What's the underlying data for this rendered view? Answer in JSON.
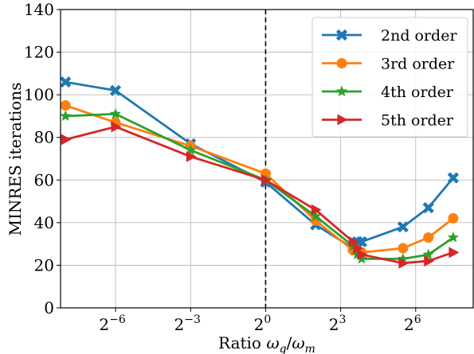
{
  "chart_data": {
    "type": "line",
    "xlabel": "Ratio ωq/ωm",
    "ylabel": "MINRES iterations",
    "xscale": "log2",
    "xlim_exp": [
      -8.2,
      8.3
    ],
    "ylim": [
      0,
      140
    ],
    "yticks": [
      0,
      20,
      40,
      60,
      80,
      100,
      120,
      140
    ],
    "xticks": [
      {
        "base": "2",
        "exp": "−6",
        "value": 0.015625
      },
      {
        "base": "2",
        "exp": "−3",
        "value": 0.125
      },
      {
        "base": "2",
        "exp": "0",
        "value": 1
      },
      {
        "base": "2",
        "exp": "3",
        "value": 8
      },
      {
        "base": "2",
        "exp": "6",
        "value": 64
      }
    ],
    "grid": true,
    "vline": {
      "x": 1,
      "style": "dashed",
      "color": "#000000"
    },
    "legend_position": "top-right",
    "series": [
      {
        "name": "2nd order",
        "color": "#1f77b4",
        "marker": "x",
        "x": [
          0.0039,
          0.0156,
          0.125,
          1,
          4,
          11.3,
          12.7,
          14.3,
          45,
          91,
          181
        ],
        "y": [
          106,
          102,
          77,
          59,
          39,
          28,
          31,
          31,
          38,
          47,
          61
        ]
      },
      {
        "name": "3rd order",
        "color": "#ff7f0e",
        "marker": "circle",
        "x": [
          0.0039,
          0.0156,
          0.125,
          1,
          4,
          11.3,
          12.7,
          14.3,
          45,
          91,
          181
        ],
        "y": [
          95,
          87,
          76,
          63,
          41,
          27,
          27,
          26,
          28,
          33,
          42
        ]
      },
      {
        "name": "4th order",
        "color": "#2ca02c",
        "marker": "star",
        "x": [
          0.0039,
          0.0156,
          0.125,
          1,
          4,
          11.3,
          12.7,
          14.3,
          45,
          91,
          181
        ],
        "y": [
          90,
          91,
          74,
          60,
          43,
          29,
          25,
          23,
          23,
          25,
          33
        ]
      },
      {
        "name": "5th order",
        "color": "#d62728",
        "marker": "triangle-right",
        "x": [
          0.0039,
          0.0156,
          0.125,
          1,
          4,
          11.3,
          12.7,
          14.3,
          45,
          91,
          181
        ],
        "y": [
          79,
          85,
          71,
          60,
          46,
          31,
          28,
          25,
          21,
          22,
          26
        ]
      }
    ]
  }
}
